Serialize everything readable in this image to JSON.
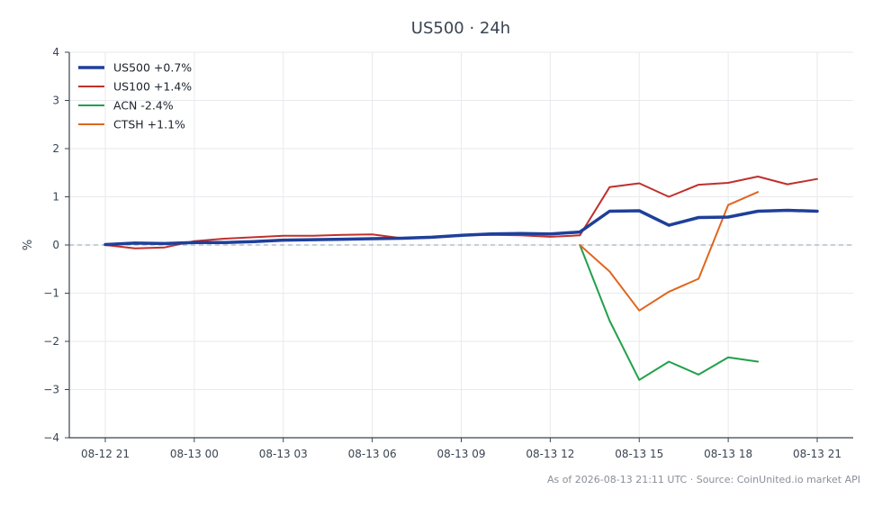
{
  "chart_data": {
    "type": "line",
    "title": "US500 · 24h",
    "ylabel": "%",
    "xlabel": "",
    "x_ticks": [
      "08-12 21",
      "08-13 00",
      "08-13 03",
      "08-13 06",
      "08-13 09",
      "08-13 12",
      "08-13 15",
      "08-13 18",
      "08-13 21"
    ],
    "x_tick_hours": [
      0,
      3,
      6,
      9,
      12,
      15,
      18,
      21,
      24
    ],
    "ylim": [
      -4,
      4
    ],
    "y_ticks": [
      4,
      3,
      2,
      1,
      0,
      -1,
      -2,
      -3,
      -4
    ],
    "y_tick_labels": [
      "4",
      "3",
      "2",
      "1",
      "0",
      "−1",
      "−2",
      "−3",
      "−4"
    ],
    "zero_line": true,
    "grid": true,
    "legend_position": "top-left",
    "series": [
      {
        "name": "US500 +0.7%",
        "color": "#1f3f9a",
        "width": 3.5,
        "x": [
          0,
          1,
          2,
          3,
          4,
          5,
          6,
          7,
          8,
          9,
          10,
          11,
          12,
          13,
          14,
          15,
          16,
          17,
          18,
          19,
          20,
          21,
          22,
          23,
          24
        ],
        "y": [
          0.01,
          0.04,
          0.03,
          0.05,
          0.05,
          0.07,
          0.1,
          0.11,
          0.12,
          0.13,
          0.14,
          0.16,
          0.2,
          0.23,
          0.24,
          0.23,
          0.27,
          0.7,
          0.71,
          0.41,
          0.57,
          0.58,
          0.7,
          0.72,
          0.7
        ]
      },
      {
        "name": "US100 +1.4%",
        "color": "#c0302c",
        "width": 2,
        "x": [
          0,
          1,
          2,
          3,
          4,
          5,
          6,
          7,
          8,
          9,
          10,
          11,
          12,
          13,
          14,
          15,
          16,
          17,
          18,
          19,
          20,
          21,
          22,
          23,
          24
        ],
        "y": [
          0.0,
          -0.07,
          -0.05,
          0.08,
          0.13,
          0.16,
          0.19,
          0.19,
          0.21,
          0.22,
          0.14,
          0.15,
          0.2,
          0.21,
          0.2,
          0.17,
          0.2,
          1.2,
          1.28,
          1.0,
          1.25,
          1.29,
          1.42,
          1.26,
          1.37
        ]
      },
      {
        "name": "ACN -2.4%",
        "color": "#22a04b",
        "width": 2,
        "x": [
          16,
          17,
          18,
          19,
          20,
          21,
          22
        ],
        "y": [
          0.0,
          -1.57,
          -2.8,
          -2.42,
          -2.69,
          -2.33,
          -2.42
        ]
      },
      {
        "name": "CTSH +1.1%",
        "color": "#e0661f",
        "width": 2,
        "x": [
          16,
          17,
          18,
          19,
          20,
          21,
          22
        ],
        "y": [
          0.0,
          -0.55,
          -1.36,
          -0.97,
          -0.7,
          0.83,
          1.1
        ]
      }
    ],
    "footer": "As of 2026-08-13 21:11 UTC · Source: CoinUnited.io market API"
  }
}
